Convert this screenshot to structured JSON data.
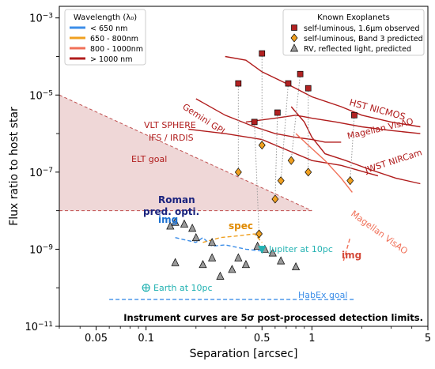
{
  "chart_data": {
    "type": "scatter",
    "xlabel": "Separation [arcsec]",
    "ylabel": "Flux ratio to host star",
    "xscale": "log",
    "yscale": "log",
    "xlim": [
      0.03,
      5
    ],
    "ylim": [
      1e-11,
      0.002
    ],
    "xticks": [
      {
        "value": 0.05,
        "label": "0.05"
      },
      {
        "value": 0.1,
        "label": "0.1"
      },
      {
        "value": 0.5,
        "label": "0.5"
      },
      {
        "value": 1,
        "label": "1"
      },
      {
        "value": 5,
        "label": "5"
      }
    ],
    "yticks": [
      {
        "value": 1e-11,
        "base": "10",
        "exp": "−11"
      },
      {
        "value": 1e-09,
        "base": "10",
        "exp": "−9"
      },
      {
        "value": 1e-07,
        "base": "10",
        "exp": "−7"
      },
      {
        "value": 1e-05,
        "base": "10",
        "exp": "−5"
      },
      {
        "value": 0.001,
        "base": "10",
        "exp": "−3"
      }
    ],
    "wavelength_legend": {
      "title": "Wavelength (λ₀)",
      "entries": [
        {
          "label": "< 650 nm",
          "color": "#3c8ee8"
        },
        {
          "label": "650 - 800nm",
          "color": "#f0a020"
        },
        {
          "label": "800 - 1000nm",
          "color": "#f07058"
        },
        {
          "label": "> 1000 nm",
          "color": "#b01c1c"
        }
      ]
    },
    "exoplanet_legend": {
      "title": "Known Exoplanets",
      "entries": [
        {
          "label": "self-luminous, 1.6μm observed",
          "marker": "square",
          "color": "#b22222"
        },
        {
          "label": "self-luminous, Band 3 predicted",
          "marker": "diamond",
          "color": "#f0a020"
        },
        {
          "label": "RV, reflected light, predicted",
          "marker": "triangle",
          "color": "#9a9a9a"
        }
      ]
    },
    "elt_goal": {
      "label": "ELT goal",
      "color": "#c05050",
      "fill": "#efd7d7",
      "upper": [
        [
          0.03,
          1e-05
        ],
        [
          1.0,
          1e-08
        ]
      ],
      "lower": [
        [
          0.03,
          1e-08
        ],
        [
          1.0,
          1e-08
        ]
      ]
    },
    "instrument_curves": [
      {
        "label": "Gemini GPI",
        "color": "#b01c1c",
        "x": [
          0.2,
          0.3,
          0.45,
          0.6,
          0.8,
          1.0,
          1.2,
          1.5
        ],
        "y": [
          8e-06,
          3e-06,
          1.5e-06,
          1e-06,
          8e-07,
          7e-07,
          6e-07,
          6e-07
        ]
      },
      {
        "label": "VLT SPHERE IFS / IRDIS",
        "color": "#b01c1c",
        "x": [
          0.18,
          0.3,
          0.5,
          0.8,
          1.0,
          1.5,
          2.5
        ],
        "y": [
          1.3e-06,
          1e-06,
          7e-07,
          3e-07,
          2e-07,
          1.5e-07,
          8e-08
        ]
      },
      {
        "label": "HST NICMOS",
        "color": "#b01c1c",
        "x": [
          0.3,
          0.4,
          0.5,
          0.7,
          1.0,
          1.5,
          2.0,
          3.0,
          4.5
        ],
        "y": [
          0.0001,
          8e-05,
          4e-05,
          2e-05,
          9e-06,
          5e-06,
          3e-06,
          2e-06,
          1.5e-06
        ]
      },
      {
        "label": "Magellan VisAO",
        "color": "#b01c1c",
        "x": [
          0.4,
          0.6,
          0.8,
          1.0,
          1.4,
          2.0,
          3.0,
          4.5
        ],
        "y": [
          2e-06,
          2.5e-06,
          3e-06,
          2.5e-06,
          2e-06,
          1.5e-06,
          1.2e-06,
          1e-06
        ]
      },
      {
        "label": "JWST NIRCam",
        "color": "#b01c1c",
        "x": [
          0.75,
          0.9,
          1.0,
          1.2,
          1.6,
          2.2,
          3.2,
          4.5
        ],
        "y": [
          5e-06,
          2e-06,
          8e-07,
          3e-07,
          2e-07,
          1.2e-07,
          7e-08,
          5e-08
        ]
      },
      {
        "label": "Magellan VisAO",
        "color": "#f07058",
        "x": [
          0.8,
          0.95,
          1.2,
          1.5,
          1.75
        ],
        "y": [
          1e-06,
          5e-07,
          2e-07,
          7e-08,
          3e-08
        ]
      }
    ],
    "roman_curve": {
      "label": "Roman pred. opti.",
      "color": "#3c8ee8",
      "x": [
        0.15,
        0.2,
        0.22,
        0.25,
        0.3,
        0.4,
        0.5
      ],
      "y": [
        2e-09,
        1.5e-09,
        2e-09,
        1.2e-09,
        1.3e-09,
        1e-09,
        9e-10
      ]
    },
    "roman_spec_curve": {
      "color": "#f0a020",
      "x": [
        0.22,
        0.28,
        0.35,
        0.45,
        0.5
      ],
      "y": [
        1.5e-09,
        2e-09,
        2.2e-09,
        2.5e-09,
        1.5e-09
      ]
    },
    "far_img_curve": {
      "color": "#f07058",
      "x": [
        1.55,
        1.7
      ],
      "y": [
        5e-10,
        2e-09
      ]
    },
    "habex_goal": {
      "label": "HabEx goal",
      "color": "#3c8ee8",
      "x": [
        0.06,
        1.8
      ],
      "y": [
        5e-11,
        5e-11
      ]
    },
    "exoplanets_observed": [
      {
        "x": 0.36,
        "y": 2e-05
      },
      {
        "x": 0.45,
        "y": 2e-06
      },
      {
        "x": 0.5,
        "y": 0.00012
      },
      {
        "x": 0.62,
        "y": 3.5e-06
      },
      {
        "x": 0.72,
        "y": 2e-05
      },
      {
        "x": 0.85,
        "y": 3.5e-05
      },
      {
        "x": 0.95,
        "y": 1.5e-05
      },
      {
        "x": 1.8,
        "y": 3e-06
      }
    ],
    "exoplanets_predicted": [
      {
        "x": 0.36,
        "y": 1e-07
      },
      {
        "x": 0.48,
        "y": 2.5e-09
      },
      {
        "x": 0.5,
        "y": 5e-07
      },
      {
        "x": 0.6,
        "y": 2e-08
      },
      {
        "x": 0.65,
        "y": 6e-08
      },
      {
        "x": 0.75,
        "y": 2e-07
      },
      {
        "x": 0.95,
        "y": 1e-07
      },
      {
        "x": 1.7,
        "y": 6e-08
      }
    ],
    "exoplanets_rv": [
      {
        "x": 0.14,
        "y": 4e-09
      },
      {
        "x": 0.15,
        "y": 5e-09
      },
      {
        "x": 0.17,
        "y": 4.5e-09
      },
      {
        "x": 0.19,
        "y": 3.5e-09
      },
      {
        "x": 0.2,
        "y": 2e-09
      },
      {
        "x": 0.22,
        "y": 4e-10
      },
      {
        "x": 0.25,
        "y": 1.5e-09
      },
      {
        "x": 0.25,
        "y": 6e-10
      },
      {
        "x": 0.28,
        "y": 2e-10
      },
      {
        "x": 0.33,
        "y": 3e-10
      },
      {
        "x": 0.36,
        "y": 6e-10
      },
      {
        "x": 0.4,
        "y": 4e-10
      },
      {
        "x": 0.47,
        "y": 1.2e-09
      },
      {
        "x": 0.52,
        "y": 1e-09
      },
      {
        "x": 0.58,
        "y": 8e-10
      },
      {
        "x": 0.65,
        "y": 5e-10
      },
      {
        "x": 0.8,
        "y": 3.5e-10
      },
      {
        "x": 0.15,
        "y": 4.5e-10
      }
    ],
    "jupiter": {
      "label": "Jupiter at 10pc",
      "x": 0.5,
      "y": 1e-09,
      "color": "#22b2b2"
    },
    "earth": {
      "label": "Earth at 10pc",
      "x": 0.1,
      "y": 1e-10,
      "color": "#22b2b2"
    },
    "annotations": [
      {
        "text": "Gemini GPI",
        "color": "#b01c1c"
      },
      {
        "text": "VLT SPHERE",
        "color": "#b01c1c"
      },
      {
        "text": "IFS / IRDIS",
        "color": "#b01c1c"
      },
      {
        "text": "HST NICMOS",
        "color": "#b01c1c"
      },
      {
        "text": "Magellan VisAO",
        "color": "#b01c1c"
      },
      {
        "text": "JWST NIRCam",
        "color": "#b01c1c"
      },
      {
        "text": "Magellan VisAO",
        "color": "#f07058"
      },
      {
        "text": "ELT goal",
        "color": "#b01c1c"
      },
      {
        "text": "Roman",
        "color": "#1a237e"
      },
      {
        "text": "pred. opti.",
        "color": "#1a237e"
      },
      {
        "text": "img",
        "color": "#1a6fd0"
      },
      {
        "text": "spec",
        "color": "#e08a00"
      },
      {
        "text": "img",
        "color": "#d44a3a"
      },
      {
        "text": "HabEx goal",
        "color": "#3c8ee8"
      },
      {
        "text": "Instrument curves are 5σ post-processed detection limits.",
        "color": "#000000"
      }
    ]
  }
}
